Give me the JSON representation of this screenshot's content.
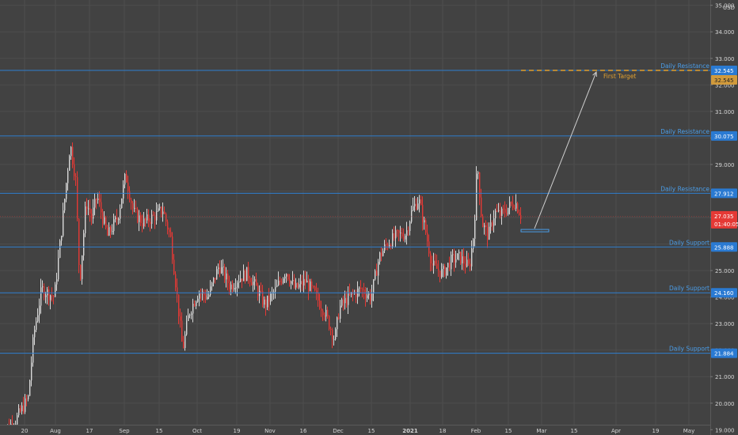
{
  "chart_data": {
    "type": "candlestick",
    "currency_label": "USD",
    "colors": {
      "background": "#424242",
      "grid": "#4d4d4d",
      "axis_text": "#d6d6d6",
      "level_line": "#2f7fd0",
      "level_label_text": "#4a9de8",
      "level_tag_bg": "#2a7ad2",
      "candle_up": "#d9d9d9",
      "candle_down": "#e53935",
      "target_line": "#e0a030",
      "target_tag_bg": "#d19a3c",
      "arrow": "#cfcfcf",
      "box": "#4a9de8",
      "price_tag_bg": "#e53935"
    },
    "y_axis": {
      "min": 18.8,
      "max": 35.2,
      "tick_labels": [
        "35.000",
        "34.000",
        "33.000",
        "32.000",
        "31.000",
        "30.000",
        "29.000",
        "28.000",
        "27.000",
        "26.000",
        "25.000",
        "24.000",
        "23.000",
        "22.000",
        "21.000",
        "20.000",
        "19.000"
      ]
    },
    "x_axis": {
      "tick_labels": [
        "20",
        "Aug",
        "17",
        "Sep",
        "15",
        "Oct",
        "19",
        "Nov",
        "16",
        "Dec",
        "15",
        "2021",
        "18",
        "Feb",
        "15",
        "Mar",
        "15",
        "Apr",
        "19",
        "May"
      ],
      "bold_labels": [
        "2021"
      ]
    },
    "levels": [
      {
        "label": "Daily Resistance",
        "value": 32.545,
        "value_text": "32.545"
      },
      {
        "label": "Daily Resistance",
        "value": 30.075,
        "value_text": "30.075"
      },
      {
        "label": "Daily Resistance",
        "value": 27.912,
        "value_text": "27.912"
      },
      {
        "label": "Daily Support",
        "value": 25.888,
        "value_text": "25.888"
      },
      {
        "label": "Daily Support",
        "value": 24.16,
        "value_text": "24.160"
      },
      {
        "label": "Daily Support",
        "value": 21.884,
        "value_text": "21.884"
      }
    ],
    "target": {
      "label": "First Target",
      "value": 32.545,
      "value_text": "32.545"
    },
    "current_price": {
      "value": 27.035,
      "value_text": "27.035",
      "countdown": "01:40:05"
    },
    "price_path": [
      [
        0,
        18.9
      ],
      [
        18,
        19.3
      ],
      [
        35,
        20.2
      ],
      [
        42,
        22.6
      ],
      [
        52,
        24.3
      ],
      [
        68,
        24.0
      ],
      [
        78,
        26.8
      ],
      [
        88,
        29.8
      ],
      [
        95,
        28.4
      ],
      [
        100,
        24.5
      ],
      [
        108,
        27.6
      ],
      [
        115,
        27.0
      ],
      [
        122,
        27.8
      ],
      [
        135,
        26.3
      ],
      [
        148,
        27.0
      ],
      [
        158,
        28.6
      ],
      [
        168,
        27.2
      ],
      [
        180,
        26.8
      ],
      [
        192,
        27.0
      ],
      [
        205,
        27.3
      ],
      [
        215,
        26.2
      ],
      [
        222,
        24.3
      ],
      [
        230,
        22.0
      ],
      [
        238,
        23.4
      ],
      [
        250,
        24.2
      ],
      [
        262,
        24.0
      ],
      [
        276,
        25.2
      ],
      [
        290,
        24.4
      ],
      [
        300,
        24.7
      ],
      [
        312,
        24.9
      ],
      [
        322,
        24.4
      ],
      [
        334,
        23.7
      ],
      [
        348,
        24.3
      ],
      [
        360,
        25.0
      ],
      [
        372,
        24.3
      ],
      [
        385,
        24.6
      ],
      [
        397,
        24.1
      ],
      [
        410,
        23.4
      ],
      [
        422,
        22.4
      ],
      [
        428,
        23.6
      ],
      [
        440,
        24.0
      ],
      [
        455,
        24.3
      ],
      [
        468,
        24.0
      ],
      [
        478,
        25.5
      ],
      [
        488,
        26.0
      ],
      [
        500,
        26.3
      ],
      [
        512,
        26.4
      ],
      [
        520,
        27.3
      ],
      [
        528,
        27.7
      ],
      [
        536,
        26.6
      ],
      [
        545,
        25.2
      ],
      [
        558,
        24.9
      ],
      [
        570,
        25.4
      ],
      [
        580,
        25.5
      ],
      [
        592,
        25.1
      ],
      [
        598,
        26.5
      ],
      [
        602,
        29.1
      ],
      [
        608,
        26.8
      ],
      [
        616,
        26.3
      ],
      [
        624,
        27.2
      ],
      [
        632,
        27.1
      ],
      [
        642,
        27.4
      ],
      [
        650,
        27.6
      ],
      [
        657,
        27.1
      ]
    ]
  }
}
